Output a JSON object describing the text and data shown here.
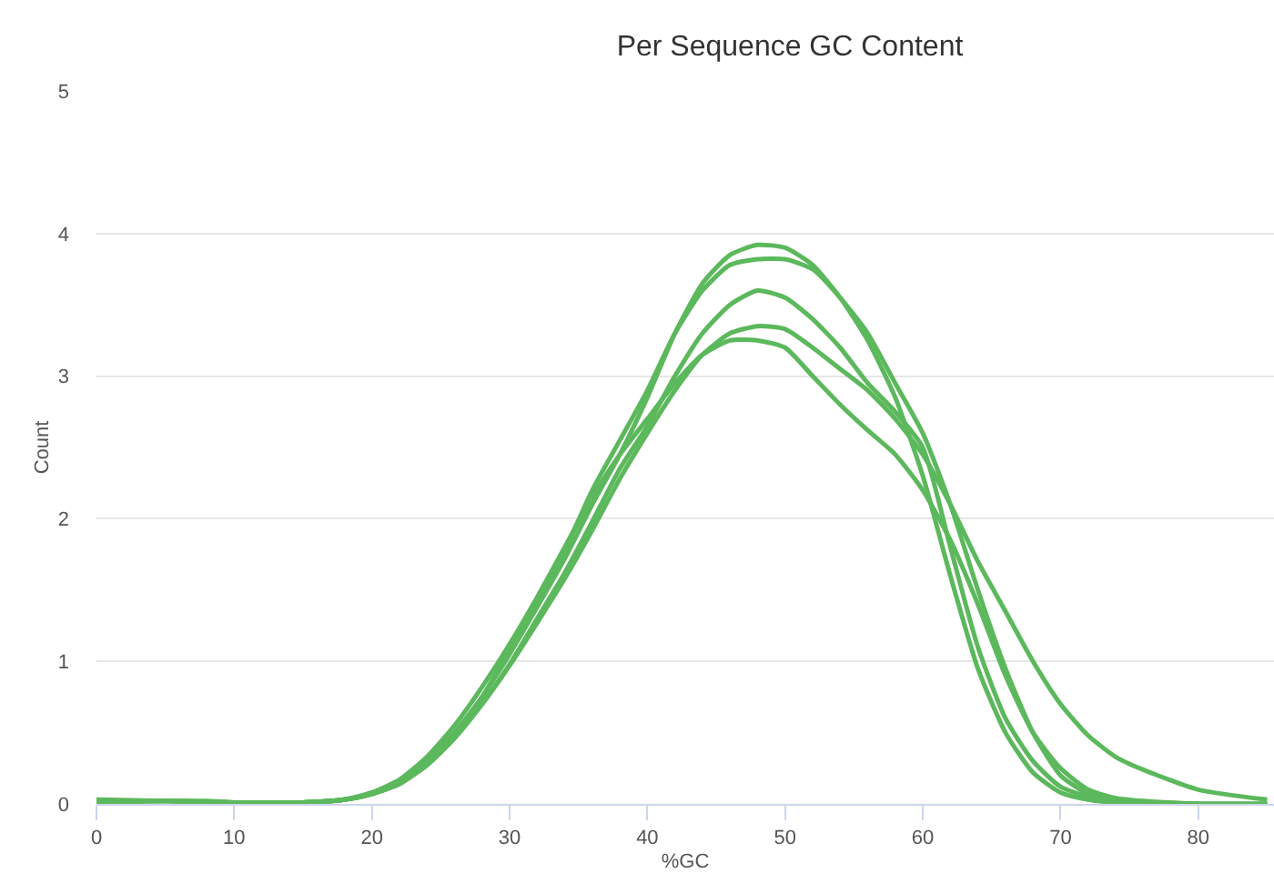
{
  "chart_data": {
    "type": "line",
    "title": "Per Sequence GC Content",
    "xlabel": "%GC",
    "ylabel": "Count",
    "x": [
      0,
      5,
      10,
      15,
      18,
      20,
      22,
      24,
      26,
      28,
      30,
      32,
      34,
      36,
      38,
      40,
      42,
      44,
      46,
      48,
      50,
      52,
      54,
      56,
      58,
      60,
      62,
      64,
      66,
      68,
      70,
      72,
      74,
      76,
      80,
      85
    ],
    "series": [
      {
        "color": "#5cb85c",
        "values": [
          0.01,
          0.02,
          0.01,
          0.01,
          0.03,
          0.07,
          0.15,
          0.3,
          0.5,
          0.75,
          1.05,
          1.38,
          1.72,
          2.1,
          2.45,
          2.85,
          3.3,
          3.65,
          3.85,
          3.92,
          3.9,
          3.78,
          3.55,
          3.25,
          2.85,
          2.3,
          1.6,
          0.95,
          0.5,
          0.22,
          0.08,
          0.03,
          0.01,
          0.01,
          0,
          0
        ]
      },
      {
        "color": "#5cb85c",
        "x": [
          0,
          5,
          10,
          15,
          18,
          20,
          22,
          24,
          26,
          28,
          30,
          32,
          34,
          36,
          38,
          40,
          42,
          44,
          46,
          48,
          50,
          52,
          54,
          56,
          58,
          60,
          62,
          64,
          66,
          68,
          70,
          72,
          74,
          76,
          80
        ],
        "values": [
          0.03,
          0.02,
          0.01,
          0.01,
          0.03,
          0.07,
          0.14,
          0.28,
          0.47,
          0.7,
          0.98,
          1.3,
          1.62,
          1.98,
          2.35,
          2.65,
          3.0,
          3.3,
          3.5,
          3.6,
          3.55,
          3.4,
          3.2,
          2.95,
          2.75,
          2.5,
          1.8,
          1.1,
          0.6,
          0.3,
          0.12,
          0.05,
          0.02,
          0.01,
          0
        ]
      },
      {
        "color": "#5cb85c",
        "values": [
          0.01,
          0.02,
          0.01,
          0.01,
          0.03,
          0.07,
          0.14,
          0.27,
          0.46,
          0.7,
          0.97,
          1.27,
          1.58,
          1.92,
          2.28,
          2.6,
          2.9,
          3.15,
          3.3,
          3.35,
          3.33,
          3.2,
          3.05,
          2.9,
          2.7,
          2.45,
          2.1,
          1.7,
          1.35,
          1.0,
          0.7,
          0.48,
          0.33,
          0.24,
          0.1,
          0.03
        ]
      },
      {
        "color": "#5cb85c",
        "x": [
          3,
          5,
          10,
          15,
          18,
          20,
          22,
          24,
          26,
          28,
          30,
          32,
          34,
          36,
          38,
          40,
          42,
          44,
          46,
          48,
          50,
          52,
          54,
          56,
          58,
          60,
          62,
          64,
          66,
          68,
          70,
          72,
          74,
          76,
          80,
          85
        ],
        "values": [
          0.02,
          0.02,
          0.01,
          0.01,
          0.03,
          0.08,
          0.17,
          0.33,
          0.55,
          0.82,
          1.12,
          1.45,
          1.8,
          2.15,
          2.45,
          2.7,
          2.95,
          3.15,
          3.25,
          3.25,
          3.2,
          3.0,
          2.8,
          2.62,
          2.45,
          2.2,
          1.85,
          1.4,
          0.9,
          0.5,
          0.25,
          0.1,
          0.04,
          0.02,
          0,
          0
        ]
      },
      {
        "color": "#5cb85c",
        "x": [
          6,
          8,
          10,
          15,
          18,
          20,
          22,
          24,
          26,
          28,
          30,
          32,
          34,
          36,
          38,
          40,
          42,
          44,
          46,
          48,
          50,
          52,
          54,
          56,
          58,
          60,
          62,
          64,
          66,
          68,
          70,
          72,
          74,
          76,
          80,
          85
        ],
        "values": [
          0.02,
          0.02,
          0.01,
          0.01,
          0.03,
          0.07,
          0.15,
          0.3,
          0.5,
          0.75,
          1.08,
          1.42,
          1.78,
          2.2,
          2.55,
          2.9,
          3.3,
          3.6,
          3.78,
          3.82,
          3.82,
          3.75,
          3.55,
          3.3,
          2.95,
          2.6,
          2.1,
          1.5,
          0.95,
          0.5,
          0.2,
          0.07,
          0.02,
          0.01,
          0,
          0
        ]
      }
    ],
    "xlim": [
      0,
      85.5
    ],
    "xticks": [
      0,
      10,
      20,
      30,
      40,
      50,
      60,
      70,
      80
    ],
    "ylim": [
      0,
      5
    ],
    "yticks": [
      0,
      1,
      2,
      3,
      4,
      5
    ],
    "grid": "y",
    "marker": "none",
    "line_style": "solid"
  }
}
